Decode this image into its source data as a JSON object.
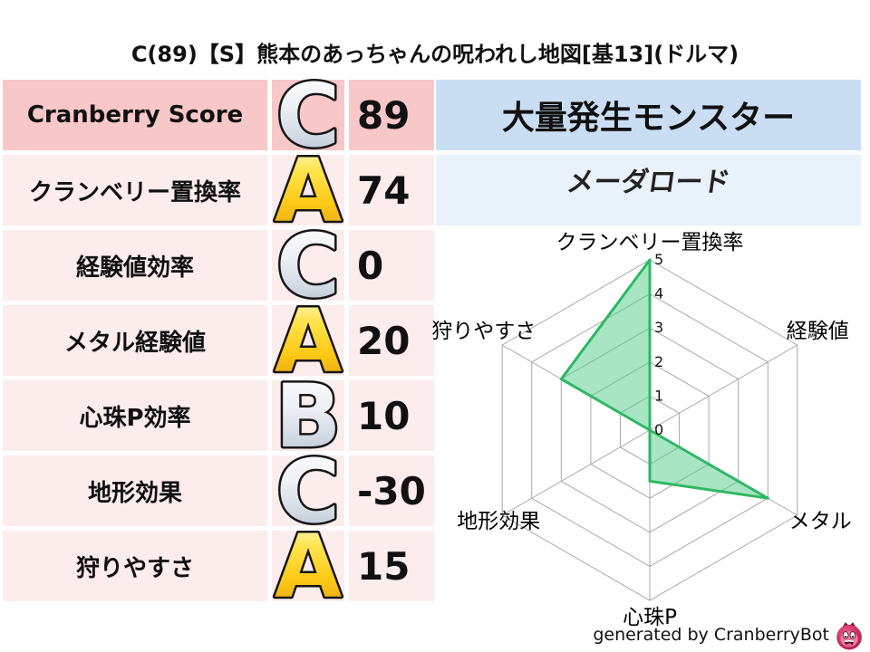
{
  "title": "C(89)【S】熊本のあっちゃんの呪われし地図[基13](ドルマ)",
  "stats_table": {
    "rows": [
      {
        "label": "Cranberry Score",
        "grade": "C",
        "grade_style": "silver",
        "value": "89"
      },
      {
        "label": "クランベリー置換率",
        "grade": "A",
        "grade_style": "gold",
        "value": "74"
      },
      {
        "label": "経験値効率",
        "grade": "C",
        "grade_style": "silver",
        "value": "0"
      },
      {
        "label": "メタル経験値",
        "grade": "A",
        "grade_style": "gold",
        "value": "20"
      },
      {
        "label": "心珠P効率",
        "grade": "B",
        "grade_style": "silver",
        "value": "10"
      },
      {
        "label": "地形効果",
        "grade": "C",
        "grade_style": "silver",
        "value": "-30"
      },
      {
        "label": "狩りやすさ",
        "grade": "A",
        "grade_style": "gold",
        "value": "15"
      }
    ]
  },
  "monster_panel": {
    "header": "大量発生モンスター",
    "name": "メーダロード"
  },
  "chart_data": {
    "type": "radar",
    "categories": [
      "クランベリー置換率",
      "経験値",
      "メタル",
      "心珠P",
      "地形効果",
      "狩りやすさ"
    ],
    "values": [
      5,
      0,
      4,
      1.5,
      0,
      3
    ],
    "ticks": [
      0,
      1,
      2,
      3,
      4,
      5
    ],
    "range": [
      0,
      5
    ],
    "grid": true,
    "legend": false,
    "fill_color": "#57cd8c",
    "stroke_color": "#2eb863"
  },
  "footer": {
    "credit": "generated by CranberryBot",
    "icon": "cranberry-bot-logo"
  },
  "colors": {
    "header_row_bg": "#f8c7c7",
    "row_bg": "#fdecec",
    "monster_header_bg": "#c9def2",
    "monster_name_bg": "#e9f2fb",
    "gold_grade": "#ffd21e",
    "silver_grade": "#d7dee8",
    "grid_gray": "#a8a8a8",
    "logo_red": "#c42458"
  }
}
